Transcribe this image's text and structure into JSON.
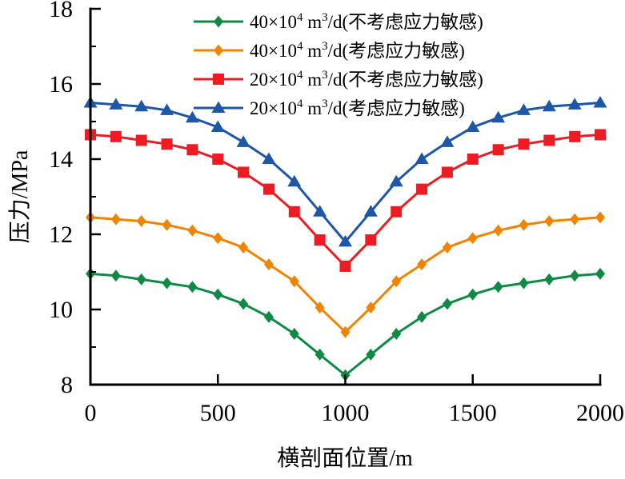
{
  "chart_data": {
    "type": "line",
    "title": "",
    "xlabel": "横剖面位置/m",
    "ylabel": "压力/MPa",
    "xlim": [
      0,
      2000
    ],
    "ylim": [
      8,
      18
    ],
    "xticks": [
      0,
      500,
      1000,
      1500,
      2000
    ],
    "xticks_minor": [],
    "yticks": [
      8,
      10,
      12,
      14,
      16,
      18
    ],
    "yticks_minor": [
      9,
      11,
      13,
      15,
      17
    ],
    "grid": false,
    "legend_position": "top-center",
    "x": [
      0,
      100,
      200,
      300,
      400,
      500,
      600,
      700,
      800,
      900,
      1000,
      1100,
      1200,
      1300,
      1400,
      1500,
      1600,
      1700,
      1800,
      1900,
      2000
    ],
    "series": [
      {
        "name": "40×10⁴ m³/d(不考虑应力敏感)",
        "label_parts": {
          "base1": "40×10",
          "sup1": "4",
          "base2": " m",
          "sup2": "3",
          "base3": "/d(不考虑应力敏感)"
        },
        "marker": "diamond",
        "color": "#0F8A44",
        "values": [
          10.95,
          10.9,
          10.8,
          10.7,
          10.6,
          10.4,
          10.15,
          9.8,
          9.35,
          8.8,
          8.25,
          8.8,
          9.35,
          9.8,
          10.15,
          10.4,
          10.6,
          10.7,
          10.8,
          10.9,
          10.95
        ]
      },
      {
        "name": "40×10⁴ m³/d(考虑应力敏感)",
        "label_parts": {
          "base1": "40×10",
          "sup1": "4",
          "base2": " m",
          "sup2": "3",
          "base3": "/d(考虑应力敏感)"
        },
        "marker": "diamond",
        "color": "#F08300",
        "values": [
          12.45,
          12.4,
          12.35,
          12.25,
          12.1,
          11.9,
          11.65,
          11.2,
          10.75,
          10.05,
          9.4,
          10.05,
          10.75,
          11.2,
          11.65,
          11.9,
          12.1,
          12.25,
          12.35,
          12.4,
          12.45
        ]
      },
      {
        "name": "20×10⁴ m³/d(不考虑应力敏感)",
        "label_parts": {
          "base1": "20×10",
          "sup1": "4",
          "base2": " m",
          "sup2": "3",
          "base3": "/d(不考虑应力敏感)"
        },
        "marker": "square",
        "color": "#ED1C24",
        "values": [
          14.65,
          14.6,
          14.5,
          14.4,
          14.25,
          14.0,
          13.65,
          13.2,
          12.6,
          11.85,
          11.15,
          11.85,
          12.6,
          13.2,
          13.65,
          14.0,
          14.25,
          14.4,
          14.5,
          14.6,
          14.65
        ]
      },
      {
        "name": "20×10⁴ m³/d(考虑应力敏感)",
        "label_parts": {
          "base1": "20×10",
          "sup1": "4",
          "base2": " m",
          "sup2": "3",
          "base3": "/d(考虑应力敏感)"
        },
        "marker": "triangle",
        "color": "#1E56A8",
        "values": [
          15.5,
          15.45,
          15.4,
          15.3,
          15.1,
          14.85,
          14.45,
          14.0,
          13.4,
          12.6,
          11.8,
          12.6,
          13.4,
          14.0,
          14.45,
          14.85,
          15.1,
          15.3,
          15.4,
          15.45,
          15.5
        ]
      }
    ],
    "axis_color": "#000000"
  }
}
